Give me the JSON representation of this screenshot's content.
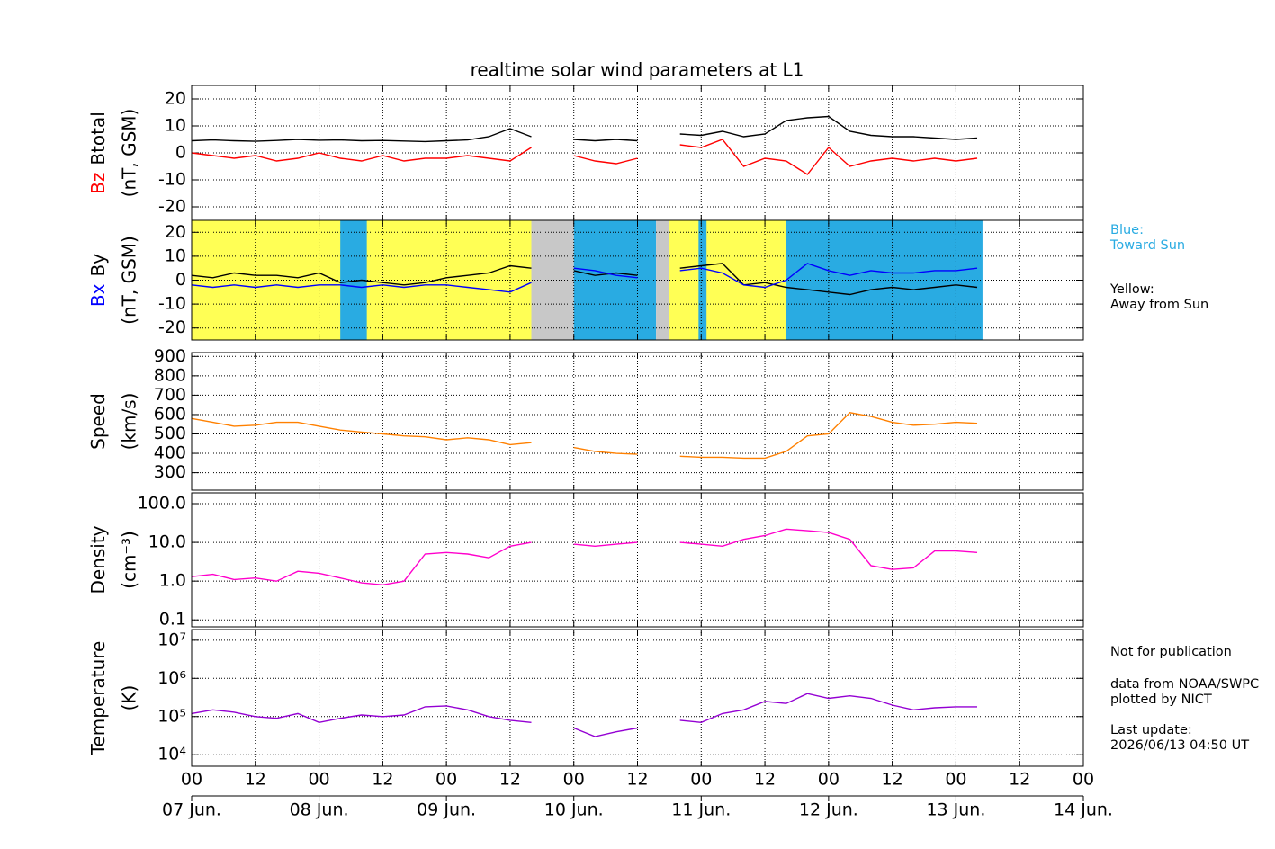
{
  "title": "realtime solar wind parameters at L1",
  "notes": {
    "blue": [
      "Blue:",
      "Toward Sun"
    ],
    "yellow": [
      "Yellow:",
      "Away from Sun"
    ],
    "info": [
      "Not for publication",
      "data from NOAA/SWPC",
      "plotted by NICT",
      "Last update:",
      "2026/06/13 04:50 UT"
    ]
  },
  "chart_data": [
    {
      "type": "line",
      "units": "(nT, GSM)",
      "x": [
        "Jun 07 00:00",
        "Jun 07 04:00",
        "Jun 07 08:00",
        "Jun 07 12:00",
        "Jun 07 16:00",
        "Jun 07 20:00",
        "Jun 08 00:00",
        "Jun 08 04:00",
        "Jun 08 08:00",
        "Jun 08 12:00",
        "Jun 08 16:00",
        "Jun 08 20:00",
        "Jun 09 00:00",
        "Jun 09 04:00",
        "Jun 09 08:00",
        "Jun 09 12:00",
        "Jun 09 16:00",
        "Jun 09 20:00",
        "Jun 10 00:00",
        "Jun 10 04:00",
        "Jun 10 08:00",
        "Jun 10 12:00",
        "Jun 10 16:00",
        "Jun 10 20:00",
        "Jun 11 00:00",
        "Jun 11 04:00",
        "Jun 11 08:00",
        "Jun 11 12:00",
        "Jun 11 16:00",
        "Jun 11 20:00",
        "Jun 12 00:00",
        "Jun 12 04:00",
        "Jun 12 08:00",
        "Jun 12 12:00",
        "Jun 12 16:00",
        "Jun 12 20:00",
        "Jun 13 00:00",
        "Jun 13 04:00"
      ],
      "series": [
        {
          "name": "Btotal",
          "color": "#000000",
          "values": [
            4.5,
            4.8,
            4.5,
            4.3,
            4.6,
            5,
            4.7,
            4.8,
            4.5,
            4.6,
            4.4,
            4.2,
            4.5,
            4.8,
            6,
            9,
            6,
            null,
            5,
            4.5,
            5,
            4.5,
            null,
            7,
            6.5,
            8,
            6,
            7,
            12,
            13,
            13.5,
            8,
            6.5,
            6,
            6,
            5.5,
            5,
            5.5
          ]
        },
        {
          "name": "Bz",
          "color": "#ff0000",
          "values": [
            0,
            -1,
            -2,
            -1,
            -3,
            -2,
            0,
            -2,
            -3,
            -1,
            -3,
            -2,
            -2,
            -1,
            -2,
            -3,
            2,
            null,
            -1,
            -3,
            -4,
            -2,
            null,
            3,
            2,
            5,
            -5,
            -2,
            -3,
            -8,
            2,
            -5,
            -3,
            -2,
            -3,
            -2,
            -3,
            -2
          ]
        }
      ],
      "ylim": [
        -25,
        25
      ],
      "yticks": [
        -20,
        -10,
        0,
        10,
        20
      ],
      "grid": true
    },
    {
      "type": "line",
      "units": "(nT, GSM)",
      "x": [
        "Jun 07 00:00",
        "Jun 07 04:00",
        "Jun 07 08:00",
        "Jun 07 12:00",
        "Jun 07 16:00",
        "Jun 07 20:00",
        "Jun 08 00:00",
        "Jun 08 04:00",
        "Jun 08 08:00",
        "Jun 08 12:00",
        "Jun 08 16:00",
        "Jun 08 20:00",
        "Jun 09 00:00",
        "Jun 09 04:00",
        "Jun 09 08:00",
        "Jun 09 12:00",
        "Jun 09 16:00",
        "Jun 09 20:00",
        "Jun 10 00:00",
        "Jun 10 04:00",
        "Jun 10 08:00",
        "Jun 10 12:00",
        "Jun 10 16:00",
        "Jun 10 20:00",
        "Jun 11 00:00",
        "Jun 11 04:00",
        "Jun 11 08:00",
        "Jun 11 12:00",
        "Jun 11 16:00",
        "Jun 11 20:00",
        "Jun 12 00:00",
        "Jun 12 04:00",
        "Jun 12 08:00",
        "Jun 12 12:00",
        "Jun 12 16:00",
        "Jun 12 20:00",
        "Jun 13 00:00",
        "Jun 13 04:00"
      ],
      "series": [
        {
          "name": "By",
          "color": "#000000",
          "values": [
            2,
            1,
            3,
            2,
            2,
            1,
            3,
            -1,
            0,
            -1,
            -2,
            -1,
            1,
            2,
            3,
            6,
            5,
            null,
            4,
            2,
            3,
            2,
            null,
            5,
            6,
            7,
            -2,
            -1,
            -3,
            -4,
            -5,
            -6,
            -4,
            -3,
            -4,
            -3,
            -2,
            -3
          ]
        },
        {
          "name": "Bx",
          "color": "#0000ff",
          "values": [
            -2,
            -3,
            -2,
            -3,
            -2,
            -3,
            -2,
            -2,
            -3,
            -2,
            -3,
            -2,
            -2,
            -3,
            -4,
            -5,
            -1,
            null,
            5,
            4,
            2,
            1,
            null,
            4,
            5,
            3,
            -2,
            -3,
            0,
            7,
            4,
            2,
            4,
            3,
            3,
            4,
            4,
            5
          ]
        }
      ],
      "sectors": [
        {
          "from": "Jun 07 00:00",
          "to": "Jun 09 16:00",
          "color": "#ffff55"
        },
        {
          "from": "Jun 08 04:00",
          "to": "Jun 08 09:00",
          "color": "#29abe2"
        },
        {
          "from": "Jun 09 16:00",
          "to": "Jun 10 00:00",
          "color": "#c8c8c8"
        },
        {
          "from": "Jun 10 00:00",
          "to": "Jun 10 15:30",
          "color": "#29abe2"
        },
        {
          "from": "Jun 10 15:30",
          "to": "Jun 10 18:00",
          "color": "#c8c8c8"
        },
        {
          "from": "Jun 10 18:00",
          "to": "Jun 11 16:00",
          "color": "#ffff55"
        },
        {
          "from": "Jun 10 23:30",
          "to": "Jun 11 01:00",
          "color": "#29abe2"
        },
        {
          "from": "Jun 11 16:00",
          "to": "Jun 13 05:00",
          "color": "#29abe2"
        }
      ],
      "ylim": [
        -25,
        25
      ],
      "yticks": [
        -20,
        -10,
        0,
        10,
        20
      ],
      "grid": true
    },
    {
      "type": "line",
      "ylabel": "Speed",
      "units": "(km/s)",
      "x": [
        "Jun 07 00:00",
        "Jun 07 04:00",
        "Jun 07 08:00",
        "Jun 07 12:00",
        "Jun 07 16:00",
        "Jun 07 20:00",
        "Jun 08 00:00",
        "Jun 08 04:00",
        "Jun 08 08:00",
        "Jun 08 12:00",
        "Jun 08 16:00",
        "Jun 08 20:00",
        "Jun 09 00:00",
        "Jun 09 04:00",
        "Jun 09 08:00",
        "Jun 09 12:00",
        "Jun 09 16:00",
        "Jun 09 20:00",
        "Jun 10 00:00",
        "Jun 10 04:00",
        "Jun 10 08:00",
        "Jun 10 12:00",
        "Jun 10 16:00",
        "Jun 10 20:00",
        "Jun 11 00:00",
        "Jun 11 04:00",
        "Jun 11 08:00",
        "Jun 11 12:00",
        "Jun 11 16:00",
        "Jun 11 20:00",
        "Jun 12 00:00",
        "Jun 12 04:00",
        "Jun 12 08:00",
        "Jun 12 12:00",
        "Jun 12 16:00",
        "Jun 12 20:00",
        "Jun 13 00:00",
        "Jun 13 04:00"
      ],
      "series": [
        {
          "color": "#ff8000",
          "values": [
            580,
            560,
            540,
            545,
            560,
            560,
            540,
            520,
            510,
            500,
            490,
            485,
            470,
            480,
            470,
            445,
            455,
            null,
            430,
            410,
            400,
            395,
            null,
            385,
            380,
            380,
            375,
            375,
            410,
            490,
            500,
            610,
            590,
            560,
            545,
            550,
            560,
            555
          ]
        }
      ],
      "ylim": [
        210,
        920
      ],
      "yticks": [
        300,
        400,
        500,
        600,
        700,
        800,
        900
      ],
      "grid": true
    },
    {
      "type": "line",
      "ylabel": "Density",
      "units": "(cm⁻³)",
      "yscale": "log",
      "x": [
        "Jun 07 00:00",
        "Jun 07 04:00",
        "Jun 07 08:00",
        "Jun 07 12:00",
        "Jun 07 16:00",
        "Jun 07 20:00",
        "Jun 08 00:00",
        "Jun 08 04:00",
        "Jun 08 08:00",
        "Jun 08 12:00",
        "Jun 08 16:00",
        "Jun 08 20:00",
        "Jun 09 00:00",
        "Jun 09 04:00",
        "Jun 09 08:00",
        "Jun 09 12:00",
        "Jun 09 16:00",
        "Jun 09 20:00",
        "Jun 10 00:00",
        "Jun 10 04:00",
        "Jun 10 08:00",
        "Jun 10 12:00",
        "Jun 10 16:00",
        "Jun 10 20:00",
        "Jun 11 00:00",
        "Jun 11 04:00",
        "Jun 11 08:00",
        "Jun 11 12:00",
        "Jun 11 16:00",
        "Jun 11 20:00",
        "Jun 12 00:00",
        "Jun 12 04:00",
        "Jun 12 08:00",
        "Jun 12 12:00",
        "Jun 12 16:00",
        "Jun 12 20:00",
        "Jun 13 00:00",
        "Jun 13 04:00"
      ],
      "series": [
        {
          "color": "#ff00cc",
          "values": [
            1.3,
            1.5,
            1.1,
            1.2,
            1.0,
            1.8,
            1.6,
            1.2,
            0.9,
            0.8,
            1.0,
            5,
            5.5,
            5,
            4,
            8,
            10,
            null,
            9,
            8,
            9,
            10,
            null,
            10,
            9,
            8,
            12,
            15,
            22,
            20,
            18,
            12,
            2.5,
            2,
            2.2,
            6,
            6,
            5.5
          ]
        }
      ],
      "ylim": [
        0.066,
        190
      ],
      "yticks": [
        {
          "value": 0.1,
          "label": "0.1"
        },
        {
          "value": 1,
          "label": "1.0"
        },
        {
          "value": 10,
          "label": "10.0"
        },
        {
          "value": 100,
          "label": "100.0"
        }
      ],
      "grid": true
    },
    {
      "type": "line",
      "ylabel": "Temperature",
      "units": "(K)",
      "yscale": "log",
      "x": [
        "Jun 07 00:00",
        "Jun 07 04:00",
        "Jun 07 08:00",
        "Jun 07 12:00",
        "Jun 07 16:00",
        "Jun 07 20:00",
        "Jun 08 00:00",
        "Jun 08 04:00",
        "Jun 08 08:00",
        "Jun 08 12:00",
        "Jun 08 16:00",
        "Jun 08 20:00",
        "Jun 09 00:00",
        "Jun 09 04:00",
        "Jun 09 08:00",
        "Jun 09 12:00",
        "Jun 09 16:00",
        "Jun 09 20:00",
        "Jun 10 00:00",
        "Jun 10 04:00",
        "Jun 10 08:00",
        "Jun 10 12:00",
        "Jun 10 16:00",
        "Jun 10 20:00",
        "Jun 11 00:00",
        "Jun 11 04:00",
        "Jun 11 08:00",
        "Jun 11 12:00",
        "Jun 11 16:00",
        "Jun 11 20:00",
        "Jun 12 00:00",
        "Jun 12 04:00",
        "Jun 12 08:00",
        "Jun 12 12:00",
        "Jun 12 16:00",
        "Jun 12 20:00",
        "Jun 13 00:00",
        "Jun 13 04:00"
      ],
      "series": [
        {
          "color": "#9400d3",
          "values": [
            120000,
            150000,
            130000,
            100000,
            90000,
            120000,
            70000,
            90000,
            110000,
            100000,
            110000,
            180000,
            190000,
            150000,
            100000,
            80000,
            70000,
            null,
            50000,
            30000,
            40000,
            50000,
            null,
            80000,
            70000,
            120000,
            150000,
            250000,
            220000,
            400000,
            300000,
            350000,
            300000,
            200000,
            150000,
            170000,
            180000,
            180000
          ]
        }
      ],
      "ylim": [
        5000,
        19000000
      ],
      "yticks": [
        {
          "value": 10000,
          "label": "10⁴"
        },
        {
          "value": 100000,
          "label": "10⁵"
        },
        {
          "value": 1000000,
          "label": "10⁶"
        },
        {
          "value": 10000000,
          "label": "10⁷"
        }
      ],
      "grid": true,
      "xlim": [
        "Jun 07 00:00",
        "Jun 14 00:00"
      ],
      "xticks": [
        {
          "value": "Jun 07 00:00",
          "label": "00"
        },
        {
          "value": "Jun 07 12:00",
          "label": "12"
        },
        {
          "value": "Jun 08 00:00",
          "label": "00"
        },
        {
          "value": "Jun 08 12:00",
          "label": "12"
        },
        {
          "value": "Jun 09 00:00",
          "label": "00"
        },
        {
          "value": "Jun 09 12:00",
          "label": "12"
        },
        {
          "value": "Jun 10 00:00",
          "label": "00"
        },
        {
          "value": "Jun 10 12:00",
          "label": "12"
        },
        {
          "value": "Jun 11 00:00",
          "label": "00"
        },
        {
          "value": "Jun 11 12:00",
          "label": "12"
        },
        {
          "value": "Jun 12 00:00",
          "label": "00"
        },
        {
          "value": "Jun 12 12:00",
          "label": "12"
        },
        {
          "value": "Jun 13 00:00",
          "label": "00"
        },
        {
          "value": "Jun 13 12:00",
          "label": "12"
        },
        {
          "value": "Jun 14 00:00",
          "label": "00"
        }
      ],
      "date_labels": [
        {
          "value": "Jun 07 00:00",
          "label": "07 Jun."
        },
        {
          "value": "Jun 08 00:00",
          "label": "08 Jun."
        },
        {
          "value": "Jun 09 00:00",
          "label": "09 Jun."
        },
        {
          "value": "Jun 10 00:00",
          "label": "10 Jun."
        },
        {
          "value": "Jun 11 00:00",
          "label": "11 Jun."
        },
        {
          "value": "Jun 12 00:00",
          "label": "12 Jun."
        },
        {
          "value": "Jun 13 00:00",
          "label": "13 Jun."
        },
        {
          "value": "Jun 14 00:00",
          "label": "14 Jun."
        }
      ]
    }
  ]
}
